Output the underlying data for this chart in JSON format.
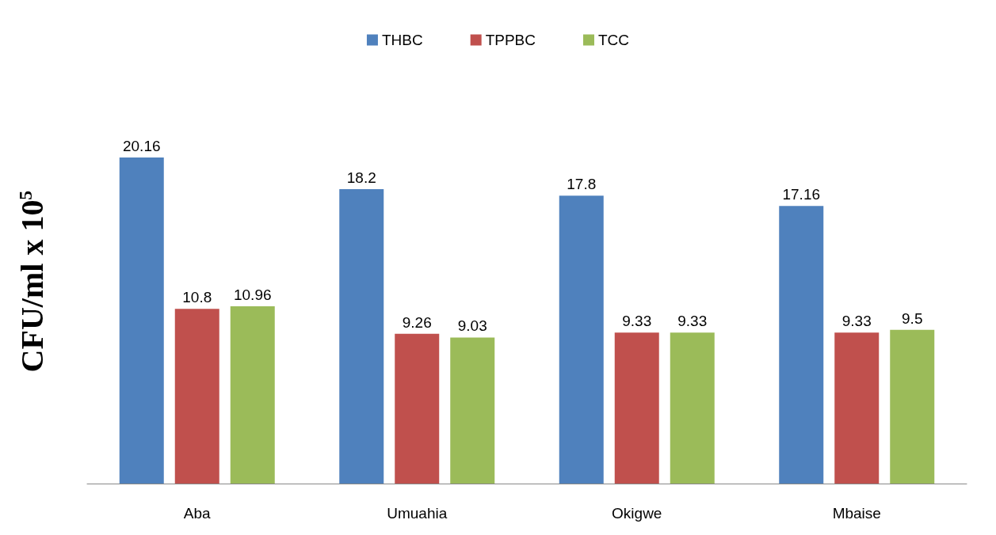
{
  "chart_data": {
    "type": "bar",
    "ylabel": "CFU/ml x 10$^{5}$",
    "categories": [
      "Aba",
      "Umuahia",
      "Okigwe",
      "Mbaise"
    ],
    "series": [
      {
        "name": "THBC",
        "color": "#4f81bd",
        "values": [
          20.16,
          18.2,
          17.8,
          17.16
        ]
      },
      {
        "name": "TPPBC",
        "color": "#c0504d",
        "values": [
          10.8,
          9.26,
          9.33,
          9.33
        ]
      },
      {
        "name": "TCC",
        "color": "#9bbb59",
        "values": [
          10.96,
          9.03,
          9.33,
          9.5
        ]
      }
    ],
    "data_labels": true,
    "legend": "top",
    "grid": false
  }
}
